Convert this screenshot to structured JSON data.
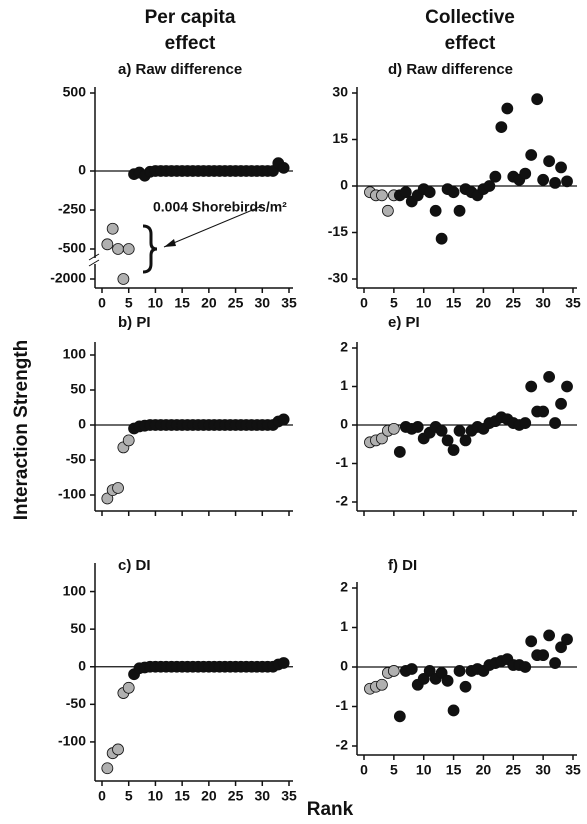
{
  "column_titles": [
    [
      "Per capita",
      "effect"
    ],
    [
      "Collective",
      "effect"
    ]
  ],
  "ylabel": "Interaction Strength",
  "xlabel": "Rank",
  "annotation": "0.004 Shorebirds/m²",
  "chart_data": [
    {
      "type": "scatter",
      "title": "a) Raw difference",
      "xlim": [
        0,
        35
      ],
      "xticks": [
        0,
        5,
        10,
        15,
        20,
        25,
        30,
        35
      ],
      "xtick_labels": true,
      "ylim": [
        -2000,
        500
      ],
      "yticks": [
        -2000,
        -500,
        -250,
        0,
        500
      ],
      "axis_break": true,
      "zero_line": true,
      "series": [
        {
          "color": "#b0b0b0",
          "x": [
            1,
            2,
            3,
            4,
            5
          ],
          "values": [
            -470,
            -370,
            -500,
            -2000,
            -500
          ]
        },
        {
          "color": "#111111",
          "x": [
            6,
            7,
            8,
            9,
            10,
            11,
            12,
            13,
            14,
            15,
            16,
            17,
            18,
            19,
            20,
            21,
            22,
            23,
            24,
            25,
            26,
            27,
            28,
            29,
            30,
            31,
            32,
            33,
            34
          ],
          "values": [
            -20,
            -10,
            -30,
            -5,
            0,
            0,
            0,
            0,
            0,
            0,
            0,
            0,
            0,
            0,
            0,
            0,
            0,
            0,
            0,
            0,
            0,
            0,
            0,
            0,
            0,
            0,
            0,
            50,
            20
          ]
        }
      ]
    },
    {
      "type": "scatter",
      "title": "b) PI",
      "xlim": [
        0,
        35
      ],
      "xticks": [
        0,
        5,
        10,
        15,
        20,
        25,
        30,
        35
      ],
      "xtick_labels": false,
      "ylim": [
        -110,
        110
      ],
      "yticks": [
        -100,
        -50,
        0,
        50,
        100
      ],
      "zero_line": true,
      "series": [
        {
          "color": "#b0b0b0",
          "x": [
            1,
            2,
            3,
            4,
            5
          ],
          "values": [
            -105,
            -93,
            -90,
            -32,
            -22
          ]
        },
        {
          "color": "#111111",
          "x": [
            6,
            7,
            8,
            9,
            10,
            11,
            12,
            13,
            14,
            15,
            16,
            17,
            18,
            19,
            20,
            21,
            22,
            23,
            24,
            25,
            26,
            27,
            28,
            29,
            30,
            31,
            32,
            33,
            34
          ],
          "values": [
            -5,
            -2,
            -1,
            0,
            0,
            0,
            0,
            0,
            0,
            0,
            0,
            0,
            0,
            0,
            0,
            0,
            0,
            0,
            0,
            0,
            0,
            0,
            0,
            0,
            0,
            0,
            0,
            5,
            8
          ]
        }
      ]
    },
    {
      "type": "scatter",
      "title": "c) DI",
      "xlim": [
        0,
        35
      ],
      "xticks": [
        0,
        5,
        10,
        15,
        20,
        25,
        30,
        35
      ],
      "xtick_labels": true,
      "ylim": [
        -140,
        130
      ],
      "yticks": [
        -100,
        -50,
        0,
        50,
        100
      ],
      "zero_line": true,
      "series": [
        {
          "color": "#b0b0b0",
          "x": [
            1,
            2,
            3,
            4,
            5
          ],
          "values": [
            -135,
            -115,
            -110,
            -35,
            -28
          ]
        },
        {
          "color": "#111111",
          "x": [
            6,
            7,
            8,
            9,
            10,
            11,
            12,
            13,
            14,
            15,
            16,
            17,
            18,
            19,
            20,
            21,
            22,
            23,
            24,
            25,
            26,
            27,
            28,
            29,
            30,
            31,
            32,
            33,
            34
          ],
          "values": [
            -10,
            -2,
            -1,
            0,
            0,
            0,
            0,
            0,
            0,
            0,
            0,
            0,
            0,
            0,
            0,
            0,
            0,
            0,
            0,
            0,
            0,
            0,
            0,
            0,
            0,
            0,
            0,
            3,
            5
          ]
        }
      ]
    },
    {
      "type": "scatter",
      "title": "d) Raw difference",
      "xlim": [
        0,
        35
      ],
      "xticks": [
        0,
        5,
        10,
        15,
        20,
        25,
        30,
        35
      ],
      "xtick_labels": true,
      "ylim": [
        -30,
        30
      ],
      "yticks": [
        -30,
        -15,
        0,
        15,
        30
      ],
      "zero_line": true,
      "series": [
        {
          "color": "#b0b0b0",
          "x": [
            1,
            2,
            3,
            4,
            5
          ],
          "values": [
            -2,
            -3,
            -3,
            -8,
            -3
          ]
        },
        {
          "color": "#111111",
          "x": [
            6,
            7,
            8,
            9,
            10,
            11,
            12,
            13,
            14,
            15,
            16,
            17,
            18,
            19,
            20,
            21,
            22,
            23,
            24,
            25,
            26,
            27,
            28,
            29,
            30,
            31,
            32,
            33,
            34
          ],
          "values": [
            -3,
            -2,
            -5,
            -3,
            -1,
            -2,
            -8,
            -17,
            -1,
            -2,
            -8,
            -1,
            -2,
            -3,
            -1,
            0,
            3,
            19,
            25,
            3,
            2,
            4,
            10,
            28,
            2,
            8,
            1,
            6,
            1.5
          ]
        }
      ]
    },
    {
      "type": "scatter",
      "title": "e) PI",
      "xlim": [
        0,
        35
      ],
      "xticks": [
        0,
        5,
        10,
        15,
        20,
        25,
        30,
        35
      ],
      "xtick_labels": false,
      "ylim": [
        -2,
        2
      ],
      "yticks": [
        -2,
        -1,
        0,
        1,
        2
      ],
      "zero_line": true,
      "series": [
        {
          "color": "#b0b0b0",
          "x": [
            1,
            2,
            3,
            4,
            5
          ],
          "values": [
            -0.45,
            -0.4,
            -0.35,
            -0.15,
            -0.1
          ]
        },
        {
          "color": "#111111",
          "x": [
            6,
            7,
            8,
            9,
            10,
            11,
            12,
            13,
            14,
            15,
            16,
            17,
            18,
            19,
            20,
            21,
            22,
            23,
            24,
            25,
            26,
            27,
            28,
            29,
            30,
            31,
            32,
            33,
            34
          ],
          "values": [
            -0.7,
            -0.05,
            -0.1,
            -0.05,
            -0.35,
            -0.2,
            -0.05,
            -0.15,
            -0.4,
            -0.65,
            -0.15,
            -0.4,
            -0.15,
            -0.05,
            -0.1,
            0.05,
            0.1,
            0.2,
            0.15,
            0.05,
            0,
            0.05,
            1.0,
            0.35,
            0.35,
            1.25,
            0.05,
            0.55,
            1.0
          ]
        }
      ]
    },
    {
      "type": "scatter",
      "title": "f) DI",
      "xlim": [
        0,
        35
      ],
      "xticks": [
        0,
        5,
        10,
        15,
        20,
        25,
        30,
        35
      ],
      "xtick_labels": true,
      "ylim": [
        -2,
        2
      ],
      "yticks": [
        -2,
        -1,
        0,
        1,
        2
      ],
      "zero_line": true,
      "series": [
        {
          "color": "#b0b0b0",
          "x": [
            1,
            2,
            3,
            4,
            5
          ],
          "values": [
            -0.55,
            -0.5,
            -0.45,
            -0.15,
            -0.1
          ]
        },
        {
          "color": "#111111",
          "x": [
            6,
            7,
            8,
            9,
            10,
            11,
            12,
            13,
            14,
            15,
            16,
            17,
            18,
            19,
            20,
            21,
            22,
            23,
            24,
            25,
            26,
            27,
            28,
            29,
            30,
            31,
            32,
            33,
            34
          ],
          "values": [
            -1.25,
            -0.1,
            -0.05,
            -0.45,
            -0.3,
            -0.1,
            -0.3,
            -0.15,
            -0.35,
            -1.1,
            -0.1,
            -0.5,
            -0.1,
            -0.05,
            -0.1,
            0.05,
            0.1,
            0.15,
            0.2,
            0.05,
            0.05,
            0,
            0.65,
            0.3,
            0.3,
            0.8,
            0.1,
            0.5,
            0.7
          ]
        }
      ]
    }
  ]
}
